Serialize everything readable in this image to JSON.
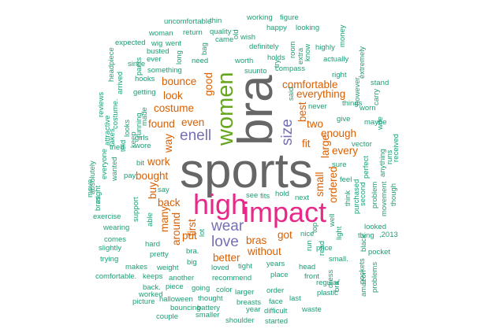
{
  "colors": {
    "background": "#ffffff",
    "tiny": "#1b9e77",
    "small": "#d95f02",
    "medium": "#7570b3",
    "large": "#66a61e",
    "huge": "#e7298a",
    "giant": "#666666"
  },
  "words": [
    {
      "text": "sports",
      "freq": "giant"
    },
    {
      "text": "bra",
      "freq": "giant"
    },
    {
      "text": "high",
      "freq": "huge"
    },
    {
      "text": "impact",
      "freq": "huge"
    },
    {
      "text": "women",
      "freq": "large"
    },
    {
      "text": "size",
      "freq": "medium"
    },
    {
      "text": "wear",
      "freq": "medium"
    },
    {
      "text": "love",
      "freq": "medium"
    },
    {
      "text": "enell",
      "freq": "medium"
    },
    {
      "text": "costume",
      "freq": "small"
    },
    {
      "text": "even",
      "freq": "small"
    },
    {
      "text": "bras",
      "freq": "small"
    },
    {
      "text": "back",
      "freq": "small"
    },
    {
      "text": "work",
      "freq": "small"
    },
    {
      "text": "bought",
      "freq": "small"
    },
    {
      "text": "fit",
      "freq": "small"
    },
    {
      "text": "two",
      "freq": "small"
    },
    {
      "text": "small",
      "freq": "small"
    },
    {
      "text": "first",
      "freq": "small"
    },
    {
      "text": "got",
      "freq": "small"
    },
    {
      "text": "best",
      "freq": "small"
    },
    {
      "text": "way",
      "freq": "small"
    },
    {
      "text": "put",
      "freq": "small"
    },
    {
      "text": "better",
      "freq": "small"
    },
    {
      "text": "without",
      "freq": "small"
    },
    {
      "text": "buy",
      "freq": "small"
    },
    {
      "text": "ordered",
      "freq": "small"
    },
    {
      "text": "large",
      "freq": "small"
    },
    {
      "text": "many",
      "freq": "small"
    },
    {
      "text": "good",
      "freq": "small"
    },
    {
      "text": "found",
      "freq": "small"
    },
    {
      "text": "look",
      "freq": "small"
    },
    {
      "text": "bounce",
      "freq": "small"
    },
    {
      "text": "comfortable",
      "freq": "small"
    },
    {
      "text": "everything",
      "freq": "small"
    },
    {
      "text": "enough",
      "freq": "small"
    },
    {
      "text": "every",
      "freq": "small"
    },
    {
      "text": "around",
      "freq": "small"
    },
    {
      "text": "suunto",
      "freq": "tiny"
    },
    {
      "text": "compass",
      "freq": "tiny"
    },
    {
      "text": "holds",
      "freq": "tiny"
    },
    {
      "text": "worth",
      "freq": "tiny"
    },
    {
      "text": "need",
      "freq": "tiny"
    },
    {
      "text": "getting",
      "freq": "tiny"
    },
    {
      "text": "something",
      "freq": "tiny"
    },
    {
      "text": "never",
      "freq": "tiny"
    },
    {
      "text": "things",
      "freq": "tiny"
    },
    {
      "text": "sure",
      "freq": "tiny"
    },
    {
      "text": "feel",
      "freq": "tiny"
    },
    {
      "text": "nice",
      "freq": "tiny"
    },
    {
      "text": "price",
      "freq": "tiny"
    },
    {
      "text": "small.",
      "freq": "tiny"
    },
    {
      "text": "head",
      "freq": "tiny"
    },
    {
      "text": "front",
      "freq": "tiny"
    },
    {
      "text": "place",
      "freq": "tiny"
    },
    {
      "text": "years",
      "freq": "tiny"
    },
    {
      "text": "loved",
      "freq": "tiny"
    },
    {
      "text": "tight",
      "freq": "tiny"
    },
    {
      "text": "recommend",
      "freq": "tiny"
    },
    {
      "text": "pretty",
      "freq": "tiny"
    },
    {
      "text": "weight",
      "freq": "tiny"
    },
    {
      "text": "another",
      "freq": "tiny"
    },
    {
      "text": "big",
      "freq": "tiny"
    },
    {
      "text": "bra.",
      "freq": "tiny"
    },
    {
      "text": "hard",
      "freq": "tiny"
    },
    {
      "text": "support",
      "freq": "tiny"
    },
    {
      "text": "wearing",
      "freq": "tiny"
    },
    {
      "text": "exercise",
      "freq": "tiny"
    },
    {
      "text": "comes",
      "freq": "tiny"
    },
    {
      "text": "slightly",
      "freq": "tiny"
    },
    {
      "text": "trying",
      "freq": "tiny"
    },
    {
      "text": "makes",
      "freq": "tiny"
    },
    {
      "text": "keeps",
      "freq": "tiny"
    },
    {
      "text": "going",
      "freq": "tiny"
    },
    {
      "text": "larger",
      "freq": "tiny"
    },
    {
      "text": "order",
      "freq": "tiny"
    },
    {
      "text": "last",
      "freq": "tiny"
    },
    {
      "text": "thought",
      "freq": "tiny"
    },
    {
      "text": "halloween",
      "freq": "tiny"
    },
    {
      "text": "bouncing",
      "freq": "tiny"
    },
    {
      "text": "battery",
      "freq": "tiny"
    },
    {
      "text": "breasts",
      "freq": "tiny"
    },
    {
      "text": "face",
      "freq": "tiny"
    },
    {
      "text": "year",
      "freq": "tiny"
    },
    {
      "text": "difficult",
      "freq": "tiny"
    },
    {
      "text": "waste",
      "freq": "tiny"
    },
    {
      "text": "shoulder",
      "freq": "tiny"
    },
    {
      "text": "started",
      "freq": "tiny"
    },
    {
      "text": "smaller",
      "freq": "tiny"
    },
    {
      "text": "couple",
      "freq": "tiny"
    },
    {
      "text": "picture",
      "freq": "tiny"
    },
    {
      "text": "worked",
      "freq": "tiny"
    },
    {
      "text": "back.",
      "freq": "tiny"
    },
    {
      "text": "piece",
      "freq": "tiny"
    },
    {
      "text": "comfortable.",
      "freq": "tiny"
    },
    {
      "text": "running",
      "freq": "tiny"
    },
    {
      "text": "girls",
      "freq": "tiny"
    },
    {
      "text": "wore",
      "freq": "tiny"
    },
    {
      "text": "tried",
      "freq": "tiny"
    },
    {
      "text": "bit",
      "freq": "tiny"
    },
    {
      "text": "wanted",
      "freq": "tiny"
    },
    {
      "text": "pay",
      "freq": "tiny"
    },
    {
      "text": "say",
      "freq": "tiny"
    },
    {
      "text": "able",
      "freq": "tiny"
    },
    {
      "text": "made",
      "freq": "tiny"
    },
    {
      "text": "looks",
      "freq": "tiny"
    },
    {
      "text": "keep",
      "freq": "tiny"
    },
    {
      "text": "told",
      "freq": "tiny"
    },
    {
      "text": "costume.",
      "freq": "tiny"
    },
    {
      "text": "hooks",
      "freq": "tiny"
    },
    {
      "text": "pants",
      "freq": "tiny"
    },
    {
      "text": "ever",
      "freq": "tiny"
    },
    {
      "text": "busted",
      "freq": "tiny"
    },
    {
      "text": "expected",
      "freq": "tiny"
    },
    {
      "text": "since",
      "freq": "tiny"
    },
    {
      "text": "headpiece",
      "freq": "tiny"
    },
    {
      "text": "arrived",
      "freq": "tiny"
    },
    {
      "text": "woman",
      "freq": "tiny"
    },
    {
      "text": "wig",
      "freq": "tiny"
    },
    {
      "text": "went",
      "freq": "tiny"
    },
    {
      "text": "long",
      "freq": "tiny"
    },
    {
      "text": "return",
      "freq": "tiny"
    },
    {
      "text": "quality",
      "freq": "tiny"
    },
    {
      "text": "uncomfortable",
      "freq": "tiny"
    },
    {
      "text": "thin",
      "freq": "tiny"
    },
    {
      "text": "bag",
      "freq": "tiny"
    },
    {
      "text": "came",
      "freq": "tiny"
    },
    {
      "text": "old",
      "freq": "tiny"
    },
    {
      "text": "working",
      "freq": "tiny"
    },
    {
      "text": "figure",
      "freq": "tiny"
    },
    {
      "text": "happy",
      "freq": "tiny"
    },
    {
      "text": "wish",
      "freq": "tiny"
    },
    {
      "text": "definitely",
      "freq": "tiny"
    },
    {
      "text": "looking",
      "freq": "tiny"
    },
    {
      "text": "room",
      "freq": "tiny"
    },
    {
      "text": "extra",
      "freq": "tiny"
    },
    {
      "text": "know",
      "freq": "tiny"
    },
    {
      "text": "highly",
      "freq": "tiny"
    },
    {
      "text": "actually",
      "freq": "tiny"
    },
    {
      "text": "right",
      "freq": "tiny"
    },
    {
      "text": "money",
      "freq": "tiny"
    },
    {
      "text": "extremely",
      "freq": "tiny"
    },
    {
      "text": "however,",
      "freq": "tiny"
    },
    {
      "text": "stand",
      "freq": "tiny"
    },
    {
      "text": "carry",
      "freq": "tiny"
    },
    {
      "text": "worn",
      "freq": "tiny"
    },
    {
      "text": "maybe",
      "freq": "tiny"
    },
    {
      "text": "give",
      "freq": "tiny"
    },
    {
      "text": "vector",
      "freq": "tiny"
    },
    {
      "text": "perfect",
      "freq": "tiny"
    },
    {
      "text": "anything",
      "freq": "tiny"
    },
    {
      "text": "received",
      "freq": "tiny"
    },
    {
      "text": "runs",
      "freq": "tiny"
    },
    {
      "text": "second",
      "freq": "tiny"
    },
    {
      "text": "problem",
      "freq": "tiny"
    },
    {
      "text": "movement",
      "freq": "tiny"
    },
    {
      "text": "though",
      "freq": "tiny"
    },
    {
      "text": "purchased",
      "freq": "tiny"
    },
    {
      "text": "think",
      "freq": "tiny"
    },
    {
      "text": "well",
      "freq": "tiny"
    },
    {
      "text": "thing",
      "freq": "tiny"
    },
    {
      "text": "looked",
      "freq": "tiny"
    },
    {
      "text": ",2013",
      "freq": "tiny"
    },
    {
      "text": "black",
      "freq": "tiny"
    },
    {
      "text": "pocket",
      "freq": "tiny"
    },
    {
      "text": "pockets",
      "freq": "tiny"
    },
    {
      "text": "problems",
      "freq": "tiny"
    },
    {
      "text": "amazon",
      "freq": "tiny"
    },
    {
      "text": "bra,",
      "freq": "tiny"
    },
    {
      "text": "plastic",
      "freq": "tiny"
    },
    {
      "text": "dress",
      "freq": "tiny"
    },
    {
      "text": "regular",
      "freq": "tiny"
    },
    {
      "text": "light",
      "freq": "tiny"
    },
    {
      "text": "top",
      "freq": "tiny"
    },
    {
      "text": "read",
      "freq": "tiny"
    },
    {
      "text": "run",
      "freq": "tiny"
    },
    {
      "text": "next",
      "freq": "tiny"
    },
    {
      "text": "hold",
      "freq": "tiny"
    },
    {
      "text": "fits",
      "freq": "tiny"
    },
    {
      "text": "see",
      "freq": "tiny"
    },
    {
      "text": "lot",
      "freq": "tiny"
    },
    {
      "text": "color",
      "freq": "tiny"
    },
    {
      "text": "bras.",
      "freq": "tiny"
    },
    {
      "text": "everyone",
      "freq": "tiny"
    },
    {
      "text": "takes",
      "freq": "tiny"
    },
    {
      "text": "absolutely",
      "freq": "tiny"
    },
    {
      "text": "reviews",
      "freq": "tiny"
    },
    {
      "text": "attractive",
      "freq": "tiny"
    },
    {
      "text": "move",
      "freq": "tiny"
    },
    {
      "text": "might",
      "freq": "tiny"
    },
    {
      "text": "try",
      "freq": "tiny"
    },
    {
      "text": "said",
      "freq": "tiny"
    },
    {
      "text": "wife",
      "freq": "tiny"
    }
  ]
}
